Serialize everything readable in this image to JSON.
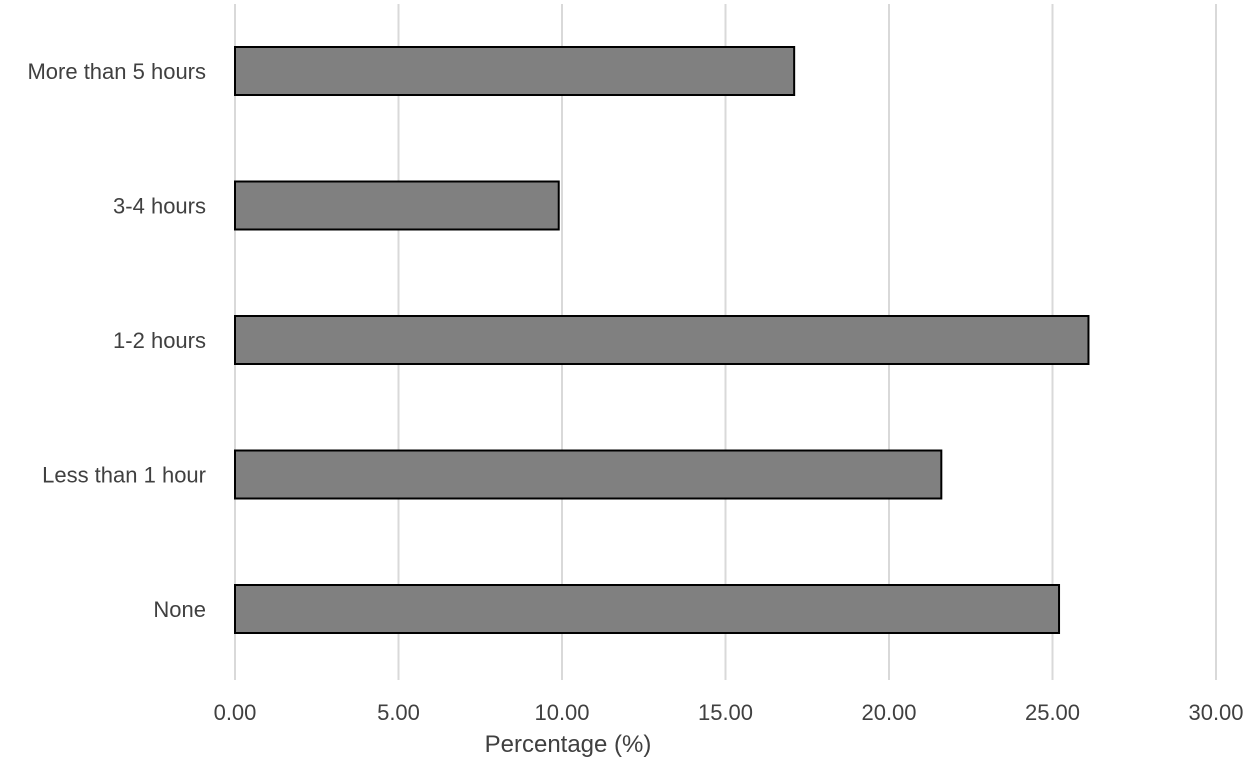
{
  "chart_data": {
    "type": "bar",
    "orientation": "horizontal",
    "categories": [
      "More than 5 hours",
      "3-4 hours",
      "1-2 hours",
      "Less than 1 hour",
      "None"
    ],
    "values": [
      17.1,
      9.9,
      26.1,
      21.6,
      25.2
    ],
    "xlabel": "Percentage (%)",
    "ylabel": "",
    "xlim": [
      0,
      30
    ],
    "xticks": [
      "0.00",
      "5.00",
      "10.00",
      "15.00",
      "20.00",
      "25.00",
      "30.00"
    ],
    "grid": "vertical",
    "legend": "none",
    "colors": {
      "bar_fill": "#808080",
      "bar_stroke": "#000000",
      "grid": "#d9d9d9",
      "text": "#404040"
    }
  }
}
